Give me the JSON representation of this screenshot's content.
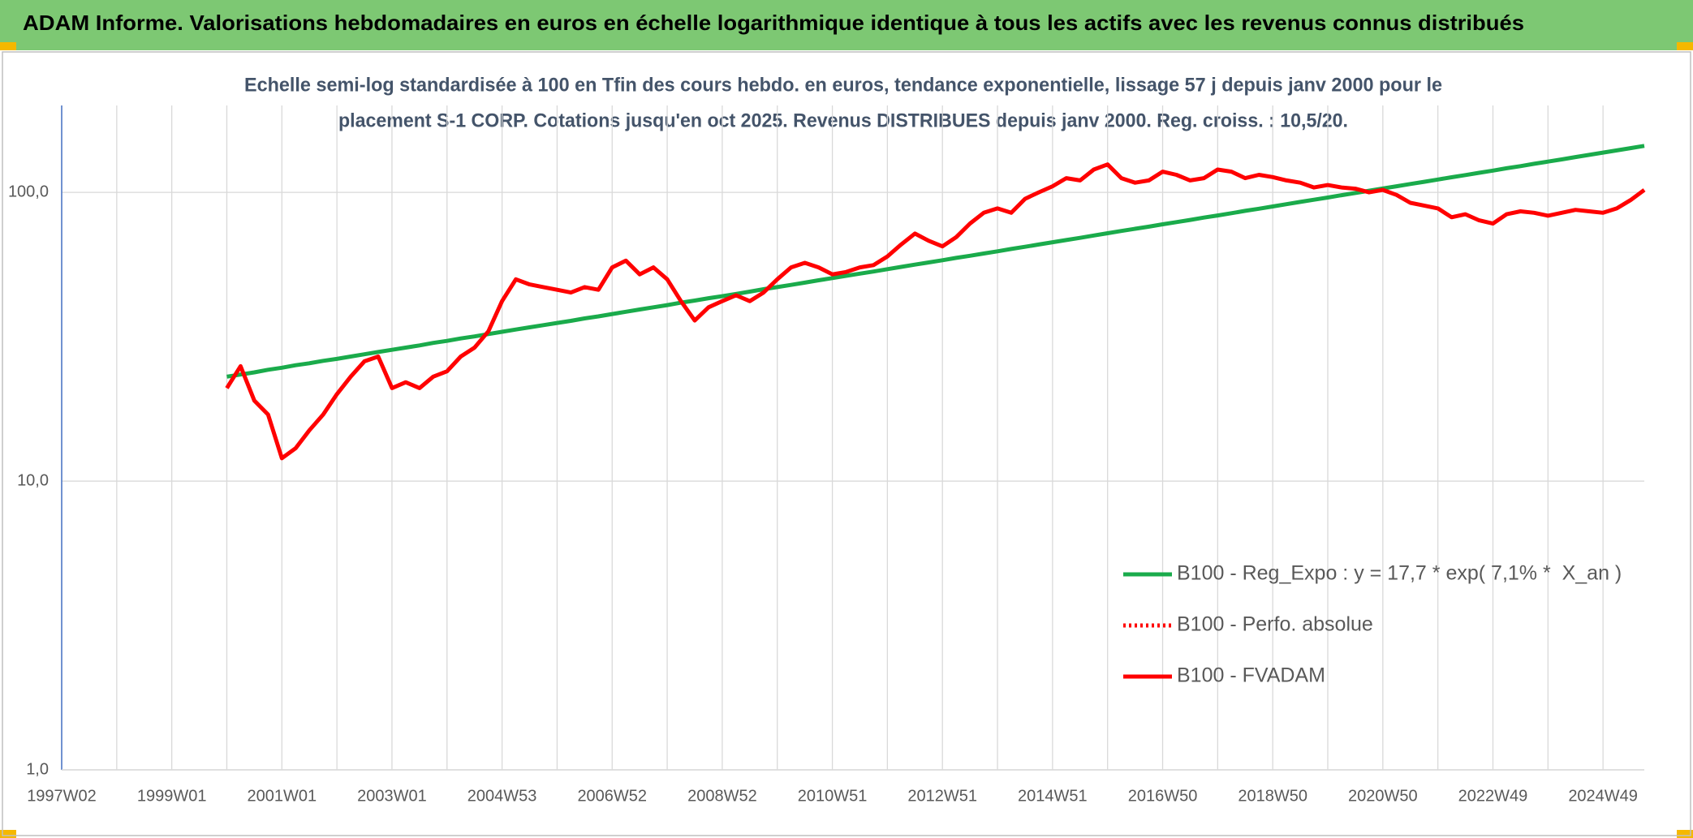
{
  "header": {
    "title": "ADAM Informe. Valorisations hebdomadaires en euros en échelle logarithmique identique à tous les actifs avec les revenus connus distribués"
  },
  "chart_data": {
    "type": "line",
    "subtitle": [
      "Echelle semi-log standardisée à 100 en Tfin des cours hebdo. en euros, tendance exponentielle, lissage 57 j depuis janv 2000 pour le",
      "placement S-1 CORP. Cotations jusqu'en oct 2025. Revenus DISTRIBUES depuis janv 2000. Reg. croiss. : 10,5/20."
    ],
    "categories": [
      "1997W02",
      null,
      null,
      null,
      null,
      null,
      null,
      null,
      "1999W01",
      null,
      null,
      null,
      null,
      null,
      null,
      null,
      "2001W01",
      null,
      null,
      null,
      null,
      null,
      null,
      null,
      "2003W01",
      null,
      null,
      null,
      null,
      null,
      null,
      null,
      "2004W53",
      null,
      null,
      null,
      null,
      null,
      null,
      null,
      "2006W52",
      null,
      null,
      null,
      null,
      null,
      null,
      null,
      "2008W52",
      null,
      null,
      null,
      null,
      null,
      null,
      null,
      "2010W51",
      null,
      null,
      null,
      null,
      null,
      null,
      null,
      "2012W51",
      null,
      null,
      null,
      null,
      null,
      null,
      null,
      "2014W51",
      null,
      null,
      null,
      null,
      null,
      null,
      null,
      "2016W50",
      null,
      null,
      null,
      null,
      null,
      null,
      null,
      "2018W50",
      null,
      null,
      null,
      null,
      null,
      null,
      null,
      "2020W50",
      null,
      null,
      null,
      null,
      null,
      null,
      null,
      "2022W49",
      null,
      null,
      null,
      null,
      null,
      null,
      null,
      "2024W49",
      null,
      null,
      null
    ],
    "series": [
      {
        "name": "B100 - Reg_Expo : y = 17,7 * exp( 7,1% *  X_an )",
        "color": "#1aab4b",
        "style": "solid",
        "values": [
          null,
          null,
          null,
          null,
          null,
          null,
          null,
          null,
          null,
          null,
          null,
          null,
          23.0,
          23.4,
          23.8,
          24.3,
          24.7,
          25.2,
          25.6,
          26.1,
          26.5,
          27.0,
          27.5,
          28.0,
          28.5,
          29.0,
          29.5,
          30.1,
          30.6,
          31.2,
          31.7,
          32.3,
          32.9,
          33.5,
          34.1,
          34.7,
          35.3,
          35.9,
          36.6,
          37.2,
          37.9,
          38.6,
          39.3,
          40.0,
          40.7,
          41.5,
          42.2,
          43.0,
          43.7,
          44.5,
          45.3,
          46.2,
          47.0,
          47.8,
          48.7,
          49.6,
          50.5,
          51.4,
          52.3,
          53.2,
          54.2,
          55.2,
          56.2,
          57.2,
          58.2,
          59.3,
          60.3,
          61.4,
          62.5,
          63.7,
          64.8,
          66.0,
          67.2,
          68.4,
          69.6,
          70.9,
          72.2,
          73.5,
          74.8,
          76.1,
          77.5,
          78.9,
          80.3,
          81.8,
          83.2,
          84.7,
          86.3,
          87.8,
          89.4,
          91.0,
          92.7,
          94.3,
          96.0,
          97.8,
          99.5,
          101.3,
          103.2,
          105.0,
          106.9,
          108.8,
          110.8,
          112.8,
          114.8,
          116.9,
          119.0,
          121.2,
          123.3,
          125.6,
          127.8,
          130.1,
          132.5,
          134.9,
          137.3,
          139.8,
          142.3,
          144.9
        ]
      },
      {
        "name": "B100 - Perfo. absolue",
        "color": "#ff0000",
        "style": "dotted",
        "values": [
          null,
          null,
          null,
          null,
          null,
          null,
          null,
          null,
          null,
          null,
          null,
          null,
          null,
          null,
          null,
          null,
          null,
          null,
          null,
          null,
          null,
          null,
          null,
          null,
          null,
          null,
          null,
          null,
          null,
          null,
          null,
          null,
          null,
          null,
          null,
          null,
          null,
          null,
          null,
          null,
          null,
          null,
          null,
          null,
          null,
          null,
          null,
          null,
          null,
          null,
          null,
          null,
          null,
          null,
          null,
          null,
          null,
          null,
          null,
          null,
          null,
          null,
          null,
          null,
          null,
          null,
          null,
          null,
          null,
          null,
          null,
          null,
          null,
          null,
          null,
          null,
          null,
          null,
          null,
          null,
          null,
          null,
          null,
          null,
          null,
          null,
          null,
          null,
          null,
          null,
          null,
          null,
          null,
          null,
          null,
          null,
          null,
          null,
          null,
          null,
          null,
          null,
          null,
          null,
          null,
          null,
          null,
          null,
          null,
          null,
          null,
          null,
          null,
          null,
          null,
          null
        ]
      },
      {
        "name": "B100 - FVADAM",
        "color": "#ff0000",
        "style": "solid",
        "values": [
          null,
          null,
          null,
          null,
          null,
          null,
          null,
          null,
          null,
          null,
          null,
          null,
          21,
          25,
          19,
          17,
          12,
          13,
          15,
          17,
          20,
          23,
          26,
          27,
          21,
          22,
          21,
          23,
          24,
          27,
          29,
          33,
          42,
          50,
          48,
          47,
          46,
          45,
          47,
          46,
          55,
          58,
          52,
          55,
          50,
          42,
          36,
          40,
          42,
          44,
          42,
          45,
          50,
          55,
          57,
          55,
          52,
          53,
          55,
          56,
          60,
          66,
          72,
          68,
          65,
          70,
          78,
          85,
          88,
          85,
          95,
          100,
          105,
          112,
          110,
          120,
          125,
          112,
          108,
          110,
          118,
          115,
          110,
          112,
          120,
          118,
          112,
          115,
          113,
          110,
          108,
          104,
          106,
          104,
          103,
          100,
          102,
          98,
          92,
          90,
          88,
          82,
          84,
          80,
          78,
          84,
          86,
          85,
          83,
          85,
          87,
          86,
          85,
          88,
          94,
          102
        ]
      }
    ],
    "log_scale": true,
    "ylim": [
      1,
      200
    ],
    "yticks": [
      {
        "value": 1,
        "label": "1,0"
      },
      {
        "value": 10,
        "label": "10,0"
      },
      {
        "value": 100,
        "label": "100,0"
      }
    ],
    "grid": true,
    "legend": "lower right"
  }
}
